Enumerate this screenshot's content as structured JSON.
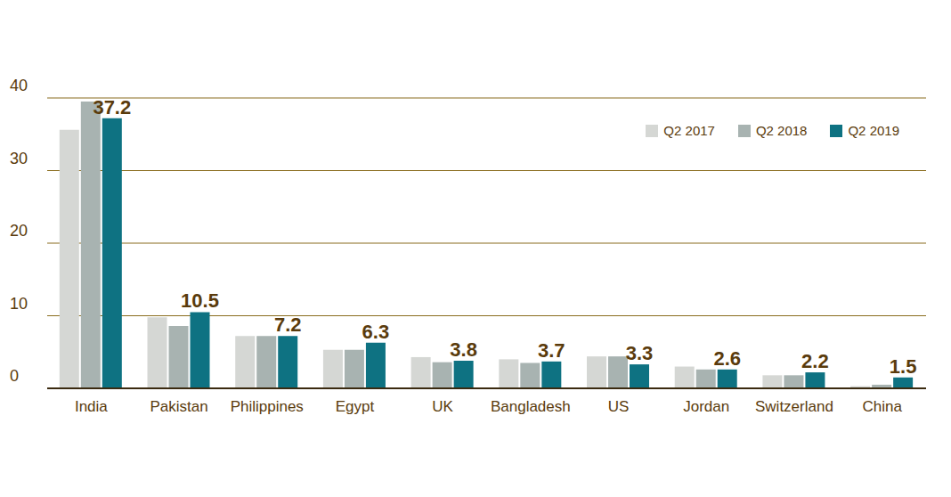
{
  "chart_data": {
    "type": "bar",
    "categories": [
      "India",
      "Pakistan",
      "Philippines",
      "Egypt",
      "UK",
      "Bangladesh",
      "US",
      "Jordan",
      "Switzerland",
      "China"
    ],
    "series": [
      {
        "name": "Q2 2017",
        "color": "#d5d7d4",
        "values": [
          35.6,
          9.8,
          7.2,
          5.3,
          4.3,
          4.0,
          4.4,
          3.0,
          1.8,
          0.3
        ]
      },
      {
        "name": "Q2 2018",
        "color": "#a8b3b1",
        "values": [
          39.5,
          8.6,
          7.2,
          5.3,
          3.6,
          3.5,
          4.4,
          2.6,
          1.8,
          0.5
        ]
      },
      {
        "name": "Q2 2019",
        "color": "#0e7282",
        "values": [
          37.2,
          10.5,
          7.2,
          6.3,
          3.8,
          3.7,
          3.3,
          2.6,
          2.2,
          1.5
        ],
        "data_labels": true
      }
    ],
    "ylim": [
      0,
      40
    ],
    "yticks": [
      0,
      10,
      20,
      30,
      40
    ],
    "grid": true,
    "legend": "upper right"
  }
}
